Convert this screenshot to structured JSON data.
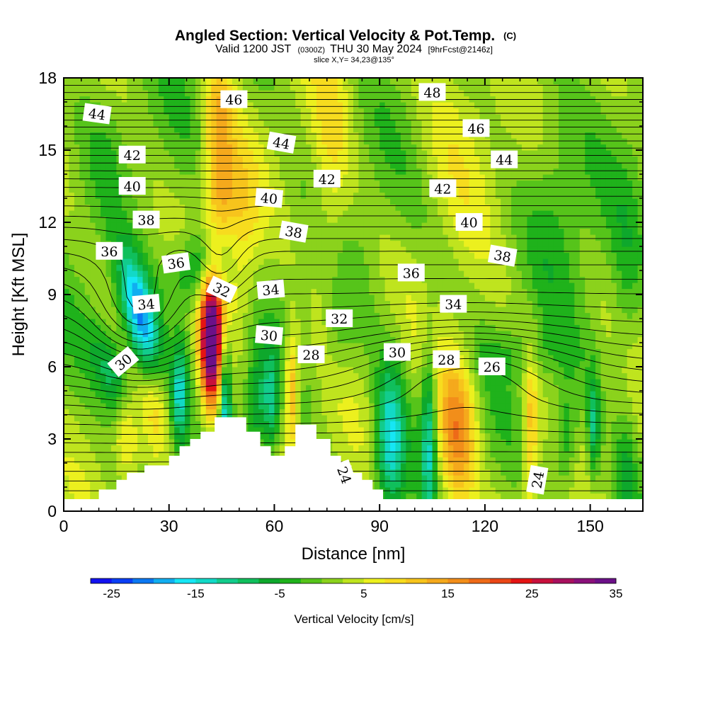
{
  "title": {
    "main": "Angled Section: Vertical Velocity & Pot.Temp.",
    "main_suffix": "(C)",
    "valid_prefix": "Valid 1200 JST",
    "valid_utc": "(0300Z)",
    "valid_date": "THU 30 May 2024",
    "forecast": "[9hrFcst@2146z]",
    "slice": "slice X,Y= 34,23@135°"
  },
  "chart_data": {
    "type": "heatmap",
    "title": "Angled Section: Vertical Velocity & Pot.Temp.",
    "xlabel": "Distance [nm]",
    "ylabel": "Height [Kft MSL]",
    "xlim": [
      0,
      165
    ],
    "ylim": [
      0,
      18
    ],
    "x_ticks": [
      0,
      30,
      60,
      90,
      120,
      150
    ],
    "y_ticks": [
      0,
      3,
      6,
      9,
      12,
      15,
      18
    ],
    "colorbar": {
      "title": "Vertical Velocity [cm/s]",
      "min": -27.5,
      "step": 2.5,
      "tick_values": [
        -25,
        -15,
        -5,
        5,
        15,
        25,
        35
      ],
      "tick_labels": [
        "-25",
        "-15",
        "-5",
        "5",
        "15",
        "25",
        "35"
      ],
      "colors": [
        "#1212f0",
        "#0a3ef5",
        "#0b78f2",
        "#11aef0",
        "#16e6f5",
        "#12d9c7",
        "#12cc8c",
        "#10bf5c",
        "#0ea82c",
        "#1fb21b",
        "#56c41a",
        "#8bd21c",
        "#bfe41e",
        "#ecf01e",
        "#f7dc1e",
        "#f7c41c",
        "#f5a91c",
        "#f28e1a",
        "#ee6a18",
        "#ea4616",
        "#e41414",
        "#c8103c",
        "#a8105e",
        "#8a107a",
        "#6c1088"
      ]
    },
    "terrain": [
      [
        0,
        0.5
      ],
      [
        10,
        0.5
      ],
      [
        10,
        0.9
      ],
      [
        15,
        0.9
      ],
      [
        15,
        1.3
      ],
      [
        18,
        1.3
      ],
      [
        18,
        1.6
      ],
      [
        23,
        1.6
      ],
      [
        23,
        1.9
      ],
      [
        30,
        1.9
      ],
      [
        30,
        2.3
      ],
      [
        33,
        2.3
      ],
      [
        33,
        2.7
      ],
      [
        36,
        2.7
      ],
      [
        36,
        3.0
      ],
      [
        39,
        3.0
      ],
      [
        39,
        3.3
      ],
      [
        43,
        3.3
      ],
      [
        43,
        3.9
      ],
      [
        52,
        3.9
      ],
      [
        52,
        3.3
      ],
      [
        56,
        3.3
      ],
      [
        56,
        2.7
      ],
      [
        59,
        2.7
      ],
      [
        59,
        2.3
      ],
      [
        63,
        2.3
      ],
      [
        63,
        2.7
      ],
      [
        66,
        2.7
      ],
      [
        66,
        3.6
      ],
      [
        72,
        3.6
      ],
      [
        72,
        3.0
      ],
      [
        76,
        3.0
      ],
      [
        76,
        2.3
      ],
      [
        79,
        2.3
      ],
      [
        79,
        1.9
      ],
      [
        82,
        1.9
      ],
      [
        82,
        1.6
      ],
      [
        85,
        1.6
      ],
      [
        85,
        1.3
      ],
      [
        88,
        1.3
      ],
      [
        88,
        0.9
      ],
      [
        91,
        0.9
      ],
      [
        91,
        0.5
      ],
      [
        165,
        0.5
      ]
    ],
    "wind_features": [
      {
        "x": 22,
        "y": 8.0,
        "sx": 3.5,
        "sy": 2.0,
        "v": -24,
        "tilt": 0.6
      },
      {
        "x": 15,
        "y": 5.4,
        "sx": 4.0,
        "sy": 1.6,
        "v": -12,
        "tilt": 0.9
      },
      {
        "x": 40,
        "y": 10.2,
        "sx": 6.0,
        "sy": 1.2,
        "v": -12,
        "tilt": -0.6
      },
      {
        "x": 33,
        "y": 4.8,
        "sx": 1.6,
        "sy": 1.6,
        "v": -14,
        "tilt": 0
      },
      {
        "x": 46,
        "y": 4.5,
        "sx": 1.2,
        "sy": 2.0,
        "v": -16,
        "tilt": 0
      },
      {
        "x": 42,
        "y": 7.0,
        "sx": 2.2,
        "sy": 2.0,
        "v": 38,
        "tilt": 0
      },
      {
        "x": 44,
        "y": 15.0,
        "sx": 3.0,
        "sy": 3.5,
        "v": 12,
        "tilt": 0
      },
      {
        "x": 50,
        "y": 11.5,
        "sx": 4.0,
        "sy": 2.5,
        "v": 9,
        "tilt": 0
      },
      {
        "x": 26,
        "y": 4.8,
        "sx": 3.0,
        "sy": 1.8,
        "v": 8,
        "tilt": 0
      },
      {
        "x": 18,
        "y": 3.5,
        "sx": 2.5,
        "sy": 1.5,
        "v": 10,
        "tilt": 0
      },
      {
        "x": 55,
        "y": 4.5,
        "sx": 2.0,
        "sy": 1.5,
        "v": -8,
        "tilt": 0
      },
      {
        "x": 59,
        "y": 4.5,
        "sx": 1.5,
        "sy": 1.5,
        "v": -10,
        "tilt": 0
      },
      {
        "x": 65,
        "y": 5.0,
        "sx": 1.5,
        "sy": 1.8,
        "v": 14,
        "tilt": 0
      },
      {
        "x": 76,
        "y": 14.0,
        "sx": 4.0,
        "sy": 5.0,
        "v": 6,
        "tilt": 0
      },
      {
        "x": 78,
        "y": 7.5,
        "sx": 3.0,
        "sy": 1.5,
        "v": -4,
        "tilt": 0
      },
      {
        "x": 93,
        "y": 3.0,
        "sx": 3.0,
        "sy": 2.2,
        "v": -17,
        "tilt": 0
      },
      {
        "x": 104,
        "y": 3.2,
        "sx": 1.5,
        "sy": 2.5,
        "v": -14,
        "tilt": 0
      },
      {
        "x": 112,
        "y": 3.3,
        "sx": 4.0,
        "sy": 2.5,
        "v": 16,
        "tilt": 0
      },
      {
        "x": 133,
        "y": 3.5,
        "sx": 1.5,
        "sy": 2.5,
        "v": 10,
        "tilt": 0
      },
      {
        "x": 143,
        "y": 3.0,
        "sx": 2.5,
        "sy": 1.5,
        "v": -8,
        "tilt": 0
      },
      {
        "x": 151,
        "y": 3.5,
        "sx": 1.2,
        "sy": 1.5,
        "v": -12,
        "tilt": 0
      },
      {
        "x": 160,
        "y": 1.5,
        "sx": 2.0,
        "sy": 1.5,
        "v": -6,
        "tilt": 0
      },
      {
        "x": 112,
        "y": 16.5,
        "sx": 8.0,
        "sy": 3.0,
        "v": 5,
        "tilt": 0
      },
      {
        "x": 140,
        "y": 13.5,
        "sx": 6.0,
        "sy": 3.0,
        "v": -4,
        "tilt": 0
      },
      {
        "x": 160,
        "y": 9.0,
        "sx": 3.0,
        "sy": 3.0,
        "v": -4,
        "tilt": 0
      },
      {
        "x": 18,
        "y": 11.5,
        "sx": 6.0,
        "sy": 2.0,
        "v": 3,
        "tilt": 0
      },
      {
        "x": 12,
        "y": 15.0,
        "sx": 4.0,
        "sy": 2.0,
        "v": -2,
        "tilt": 0
      },
      {
        "x": 130,
        "y": 6.5,
        "sx": 12.0,
        "sy": 0.7,
        "v": -3,
        "tilt": 0
      }
    ],
    "isotherms": {
      "levels": [
        24,
        26,
        28,
        30,
        32,
        34,
        36,
        38,
        40,
        42,
        44,
        46,
        48
      ],
      "labels": [
        {
          "text": "44",
          "x": 9.5,
          "y": 16.5,
          "angle": 8
        },
        {
          "text": "42",
          "x": 19.5,
          "y": 14.8,
          "angle": 0
        },
        {
          "text": "40",
          "x": 19.5,
          "y": 13.5,
          "angle": 0
        },
        {
          "text": "38",
          "x": 23.5,
          "y": 12.1,
          "angle": 0
        },
        {
          "text": "36",
          "x": 13,
          "y": 10.8,
          "angle": 0
        },
        {
          "text": "36",
          "x": 32,
          "y": 10.3,
          "angle": -8
        },
        {
          "text": "34",
          "x": 23.5,
          "y": 8.6,
          "angle": -5
        },
        {
          "text": "30",
          "x": 17,
          "y": 6.2,
          "angle": -40
        },
        {
          "text": "46",
          "x": 48.5,
          "y": 17.1,
          "angle": 0
        },
        {
          "text": "44",
          "x": 62,
          "y": 15.3,
          "angle": 10
        },
        {
          "text": "42",
          "x": 75,
          "y": 13.8,
          "angle": 0
        },
        {
          "text": "40",
          "x": 58.5,
          "y": 13.0,
          "angle": 5
        },
        {
          "text": "38",
          "x": 65.5,
          "y": 11.6,
          "angle": 10
        },
        {
          "text": "34",
          "x": 59,
          "y": 9.2,
          "angle": -5
        },
        {
          "text": "32",
          "x": 45,
          "y": 9.2,
          "angle": 25
        },
        {
          "text": "30",
          "x": 58.5,
          "y": 7.3,
          "angle": 5
        },
        {
          "text": "28",
          "x": 70.5,
          "y": 6.5,
          "angle": 0
        },
        {
          "text": "32",
          "x": 78.5,
          "y": 8.0,
          "angle": 0
        },
        {
          "text": "30",
          "x": 95,
          "y": 6.6,
          "angle": 0
        },
        {
          "text": "28",
          "x": 109,
          "y": 6.3,
          "angle": 0
        },
        {
          "text": "26",
          "x": 122,
          "y": 6.0,
          "angle": 0
        },
        {
          "text": "24",
          "x": 80,
          "y": 1.5,
          "angle": 70
        },
        {
          "text": "24",
          "x": 135,
          "y": 1.3,
          "angle": -80
        },
        {
          "text": "48",
          "x": 105,
          "y": 17.4,
          "angle": 0
        },
        {
          "text": "46",
          "x": 117.5,
          "y": 15.9,
          "angle": 0
        },
        {
          "text": "44",
          "x": 125.5,
          "y": 14.6,
          "angle": 0
        },
        {
          "text": "42",
          "x": 108,
          "y": 13.4,
          "angle": 0
        },
        {
          "text": "40",
          "x": 115.5,
          "y": 12.0,
          "angle": 0
        },
        {
          "text": "38",
          "x": 125,
          "y": 10.6,
          "angle": 10
        },
        {
          "text": "36",
          "x": 99,
          "y": 9.9,
          "angle": 0
        },
        {
          "text": "34",
          "x": 111,
          "y": 8.6,
          "angle": 0
        }
      ]
    },
    "grid": false
  }
}
